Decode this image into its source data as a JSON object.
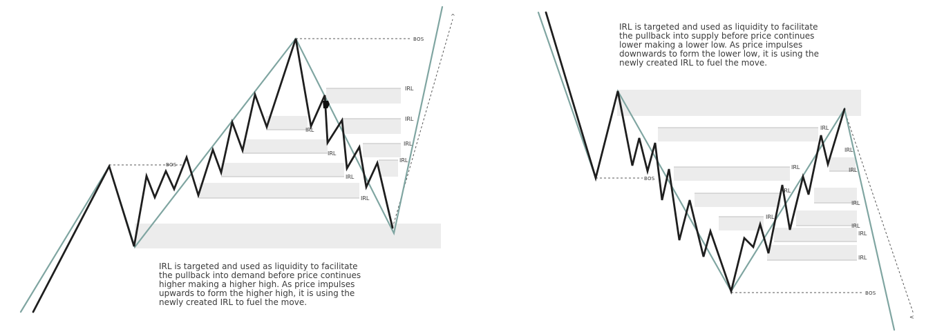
{
  "left_panel": {
    "caption": [
      "IRL is targeted and used as liquidity to facilitate",
      "the pullback into demand before price continues",
      "higher making a higher high. As price impulses",
      "upwards to form the higher high, it is using the",
      "newly created IRL to fuel the move."
    ],
    "labels": {
      "bos_top": "BOS",
      "bos_mid": "BOS",
      "irl": [
        "IRL",
        "IRL",
        "IRL",
        "IRL",
        "IRL",
        "IRL",
        "IRL",
        "IRL"
      ]
    }
  },
  "right_panel": {
    "caption": [
      "IRL is targeted and used as liquidity to facilitate",
      "the pullback into supply before price continues",
      "lower making a lower low. As price impulses",
      "downwards to form the lower low, it is using the",
      "newly created IRL to fuel the move."
    ],
    "labels": {
      "bos_mid": "BOS",
      "bos_low": "BOS",
      "irl": [
        "IRL",
        "IRL",
        "IRL",
        "IRL",
        "IRL",
        "IRL",
        "IRL",
        "IRL",
        "IRL",
        "IRL"
      ]
    }
  },
  "colors": {
    "price_line": "#1e1e1e",
    "trend_line": "#7fa5a1",
    "zone_fill": "#ececec"
  }
}
